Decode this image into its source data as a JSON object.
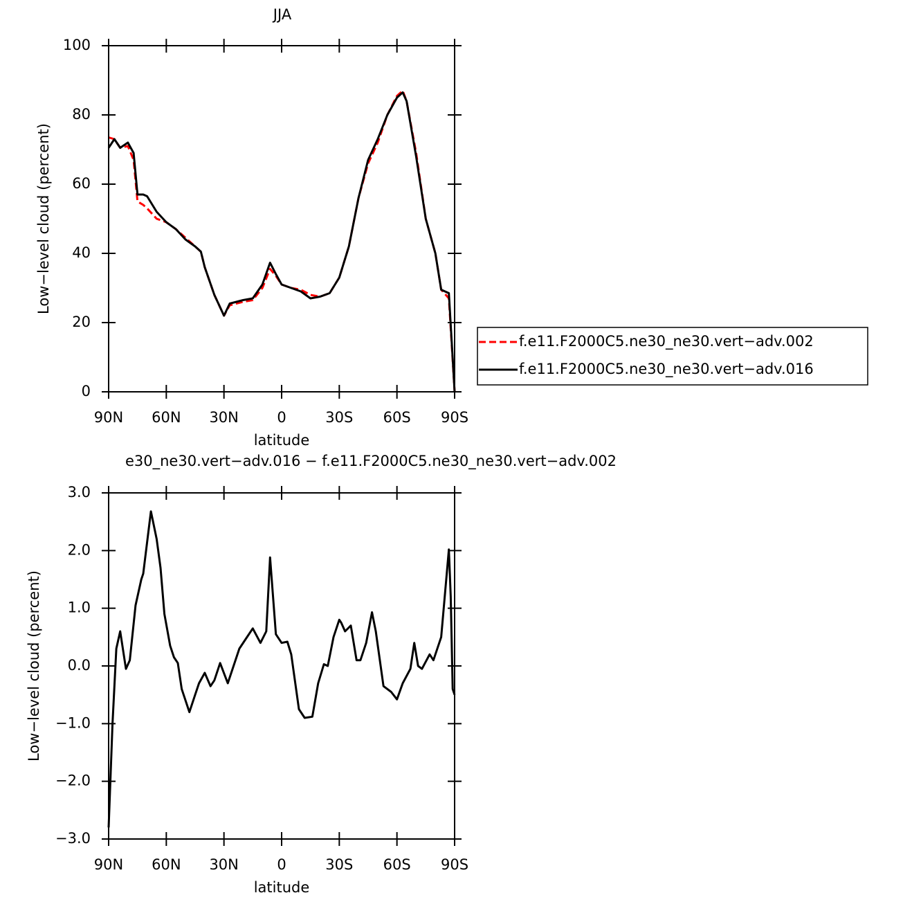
{
  "chart_data": [
    {
      "type": "line",
      "title": "JJA",
      "xlabel": "latitude",
      "ylabel": "Low−level cloud (percent)",
      "x": [
        90,
        87,
        84,
        80,
        77,
        75,
        72,
        70,
        65,
        60,
        55,
        50,
        45,
        42,
        40,
        35,
        30,
        27,
        20,
        15,
        10,
        6,
        3,
        0,
        -5,
        -10,
        -15,
        -20,
        -25,
        -30,
        -35,
        -40,
        -45,
        -50,
        -55,
        -60,
        -63,
        -65,
        -70,
        -75,
        -80,
        -83,
        -87,
        -90
      ],
      "series": [
        {
          "name": "f.e11.F2000C5.ne30_ne30.vert−adv.002",
          "color": "#ff0000",
          "dashed": true,
          "values": [
            73.5,
            73,
            70.5,
            71,
            67,
            55,
            54,
            53,
            50,
            49,
            47,
            44.5,
            42,
            40.5,
            36,
            28,
            22,
            25,
            26,
            26.5,
            30,
            35.5,
            33.5,
            31,
            30,
            29.5,
            28,
            27.5,
            28.5,
            33,
            42,
            56,
            66,
            72,
            80,
            85.5,
            87,
            84,
            69,
            50,
            40,
            29.5,
            27,
            0
          ]
        },
        {
          "name": "f.e11.F2000C5.ne30_ne30.vert−adv.016",
          "color": "#000000",
          "dashed": false,
          "values": [
            70.5,
            73,
            70.5,
            72,
            69,
            57,
            57,
            56.5,
            52,
            49,
            47,
            44,
            42,
            40.5,
            36,
            28,
            22,
            25.5,
            26.5,
            27,
            31,
            37.3,
            34,
            31,
            30,
            29,
            27,
            27.5,
            28.5,
            33,
            42,
            56,
            67,
            73,
            80,
            85,
            86.5,
            84,
            68,
            50,
            40,
            29.5,
            28.5,
            0
          ]
        }
      ],
      "xlim": [
        90,
        -90
      ],
      "xticks": [
        {
          "value": 90,
          "label": "90N"
        },
        {
          "value": 60,
          "label": "60N"
        },
        {
          "value": 30,
          "label": "30N"
        },
        0,
        {
          "value": -30,
          "label": "30S"
        },
        {
          "value": -60,
          "label": "60S"
        },
        {
          "value": -90,
          "label": "90S"
        }
      ],
      "ylim": [
        0,
        100
      ],
      "yticks": [
        0,
        20,
        40,
        60,
        80,
        100
      ],
      "legend": "right"
    },
    {
      "type": "line",
      "title": "e30_ne30.vert−adv.016 − f.e11.F2000C5.ne30_ne30.vert−adv.002",
      "xlabel": "latitude",
      "ylabel": "Low−level cloud (percent)",
      "x": [
        90,
        88,
        86,
        84,
        81,
        79,
        76,
        73,
        72,
        68,
        65,
        63,
        61,
        58,
        56,
        54,
        52,
        48,
        45,
        43,
        40,
        37,
        35,
        32,
        28,
        22,
        19,
        15,
        11,
        8,
        6,
        3,
        0,
        -3,
        -5,
        -9,
        -12,
        -16,
        -19,
        -22,
        -24,
        -27,
        -30,
        -31,
        -33,
        -36,
        -39,
        -41,
        -44,
        -47,
        -49,
        -53,
        -57,
        -60,
        -63,
        -67,
        -69,
        -71,
        -73,
        -77,
        -79,
        -83,
        -87,
        -88,
        -89,
        -90
      ],
      "series": [
        {
          "color": "#000000",
          "dashed": false,
          "values": [
            -2.8,
            -1,
            0.3,
            0.6,
            -0.05,
            0.1,
            1.05,
            1.5,
            1.6,
            2.68,
            2.2,
            1.7,
            0.9,
            0.35,
            0.15,
            0.05,
            -0.4,
            -0.8,
            -0.5,
            -0.3,
            -0.12,
            -0.35,
            -0.25,
            0.05,
            -0.3,
            0.3,
            0.45,
            0.65,
            0.4,
            0.6,
            1.88,
            0.55,
            0.4,
            0.42,
            0.2,
            -0.75,
            -0.9,
            -0.88,
            -0.3,
            0.03,
            0,
            0.5,
            0.8,
            0.75,
            0.6,
            0.7,
            0.1,
            0.1,
            0.4,
            0.93,
            0.6,
            -0.35,
            -0.45,
            -0.58,
            -0.3,
            -0.05,
            0.4,
            0,
            -0.05,
            0.2,
            0.1,
            0.5,
            2.02,
            1.2,
            -0.4,
            -0.5
          ]
        }
      ],
      "xlim": [
        90,
        -90
      ],
      "xticks": [
        {
          "value": 90,
          "label": "90N"
        },
        {
          "value": 60,
          "label": "60N"
        },
        {
          "value": 30,
          "label": "30N"
        },
        0,
        {
          "value": -30,
          "label": "30S"
        },
        {
          "value": -60,
          "label": "60S"
        },
        {
          "value": -90,
          "label": "90S"
        }
      ],
      "ylim": [
        -3,
        3
      ],
      "yticks": [
        {
          "value": -3,
          "label": "−3.0"
        },
        {
          "value": -2,
          "label": "−2.0"
        },
        {
          "value": -1,
          "label": "−1.0"
        },
        {
          "value": 0,
          "label": "0.0"
        },
        {
          "value": 1,
          "label": "1.0"
        },
        {
          "value": 2,
          "label": "2.0"
        },
        {
          "value": 3,
          "label": "3.0"
        }
      ]
    }
  ]
}
